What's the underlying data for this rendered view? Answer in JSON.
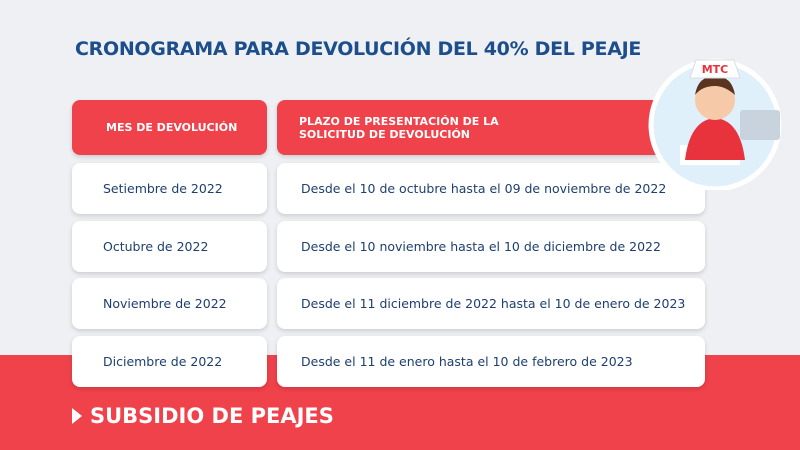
{
  "title": "CRONOGRAMA PARA DEVOLUCIÓN DEL 40% DEL PEAJE",
  "table": {
    "header": {
      "month": "MES DE DEVOLUCIÓN",
      "period": [
        "PLAZO DE PRESENTACIÓN DE LA",
        "SOLICITUD  DE  DEVOLUCIÓN"
      ]
    },
    "rows": [
      [
        "Setiembre de 2022",
        "Desde el 10 de octubre hasta el 09 de noviembre de 2022"
      ],
      [
        "Octubre de 2022",
        "Desde el 10 noviembre hasta el 10 de diciembre de 2022"
      ],
      [
        "Noviembre de 2022",
        "Desde el 11 diciembre de 2022 hasta el 10 de enero de 2023"
      ],
      [
        "Diciembre de 2022",
        "Desde el 11 de enero hasta el 10 de febrero de 2023"
      ]
    ]
  },
  "mascot": {
    "hat_label": "MTC"
  },
  "footer": {
    "label": "SUBSIDIO DE PEAJES"
  }
}
